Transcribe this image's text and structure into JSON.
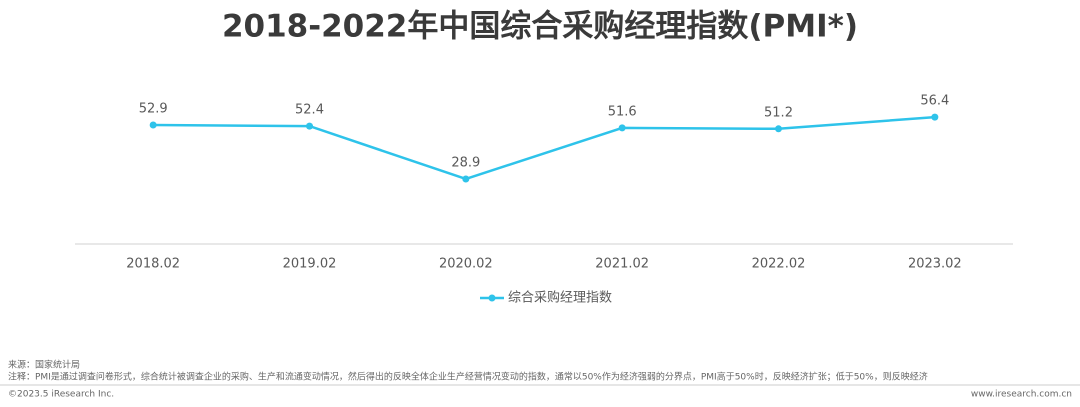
{
  "chart_data": {
    "type": "line",
    "title": "2018-2022年中国综合采购经理指数(PMI*)",
    "categories": [
      "2018.02",
      "2019.02",
      "2020.02",
      "2021.02",
      "2022.02",
      "2023.02"
    ],
    "series": [
      {
        "name": "综合采购经理指数",
        "color": "#2ec3ea",
        "values": [
          52.9,
          52.4,
          28.9,
          51.6,
          51.2,
          56.4
        ]
      }
    ],
    "ylim": [
      0,
      100
    ],
    "grid": false,
    "legend": "bottom"
  },
  "footer": {
    "source": "来源：国家统计局",
    "note": "注释：PMI是通过调查问卷形式，综合统计被调查企业的采购、生产和流通变动情况，然后得出的反映全体企业生产经营情况变动的指数，通常以50%作为经济强弱的分界点，PMI高于50%时，反映经济扩张；低于50%，则反映经济",
    "copyright": "©2023.5 iResearch Inc.",
    "website": "www.iresearch.com.cn"
  }
}
